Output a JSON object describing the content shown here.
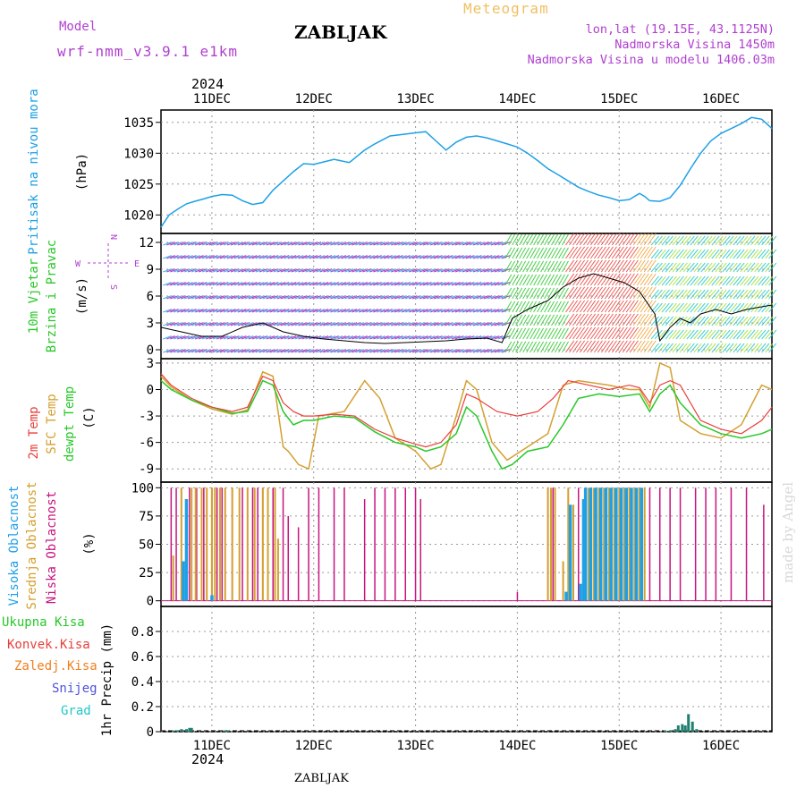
{
  "header": {
    "model_label": "Model",
    "model_name": "wrf-nmm_v3.9.1 e1km",
    "station": "ZABLJAK",
    "product": "Meteogram",
    "coords": "lon,lat (19.15E, 43.1125N)",
    "elevation": "Nadmorska Visina 1450m",
    "model_elevation": "Nadmorska Visina u modelu 1406.03m",
    "year": "2024",
    "footer_station": "ZABLJAK",
    "credit": "made by Angel"
  },
  "colors": {
    "pressure": "#1ea0e6",
    "temp2m": "#e8403a",
    "sfc_temp": "#d4a030",
    "dewpoint": "#28c828",
    "high_cloud": "#1ea0e6",
    "mid_cloud": "#d4a030",
    "low_cloud": "#c8147f",
    "total_precip": "#28c828",
    "conv_precip": "#e8403a",
    "frozen_precip": "#f08020",
    "snow": "#5050e0",
    "hail": "#20c8c8",
    "wind_label": "#28c828",
    "compass": "#b040d0"
  },
  "chart_data": [
    {
      "id": "pressure",
      "type": "line",
      "ylabel": [
        "Pritisak na nivou mora",
        "(hPa)"
      ],
      "ylim": [
        1017,
        1037
      ],
      "yticks": [
        1020,
        1025,
        1030,
        1035
      ],
      "x_ticks": [
        "11DEC",
        "12DEC",
        "13DEC",
        "14DEC",
        "15DEC",
        "16DEC"
      ],
      "x_range_days": [
        10.5,
        16.5
      ],
      "series": [
        {
          "x": [
            10.5,
            10.58,
            10.67,
            10.75,
            10.83,
            10.92,
            11.0,
            11.1,
            11.2,
            11.3,
            11.4,
            11.5,
            11.6,
            11.7,
            11.8,
            11.9,
            12.0,
            12.1,
            12.2,
            12.35,
            12.5,
            12.6,
            12.75,
            12.85,
            13.0,
            13.1,
            13.2,
            13.3,
            13.4,
            13.5,
            13.6,
            13.7,
            13.8,
            13.9,
            14.0,
            14.1,
            14.2,
            14.3,
            14.4,
            14.5,
            14.6,
            14.7,
            14.8,
            14.9,
            15.0,
            15.1,
            15.2,
            15.25,
            15.3,
            15.4,
            15.5,
            15.6,
            15.7,
            15.8,
            15.9,
            16.0,
            16.1,
            16.2,
            16.3,
            16.4,
            16.5
          ],
          "y": [
            1018,
            1020,
            1021,
            1021.8,
            1022.2,
            1022.6,
            1023,
            1023.3,
            1023.2,
            1022.3,
            1021.7,
            1022,
            1024,
            1025.5,
            1027,
            1028.3,
            1028.2,
            1028.6,
            1029,
            1028.5,
            1030.5,
            1031.5,
            1032.8,
            1033,
            1033.3,
            1033.5,
            1032,
            1030.5,
            1031.8,
            1032.6,
            1032.8,
            1032.5,
            1032,
            1031.5,
            1031,
            1030,
            1028.8,
            1027.5,
            1026.5,
            1025.5,
            1024.5,
            1023.8,
            1023.2,
            1022.8,
            1022.3,
            1022.5,
            1023.5,
            1023,
            1022.3,
            1022.2,
            1022.8,
            1024.8,
            1027.5,
            1030,
            1032,
            1033.2,
            1034,
            1034.8,
            1035.8,
            1035.5,
            1034
          ]
        }
      ]
    },
    {
      "id": "wind",
      "type": "line",
      "ylabel": [
        "10m Vjetar",
        "Brzina i Pravac",
        "(m/s)"
      ],
      "compass": {
        "n": "N",
        "s": "S",
        "e": "E",
        "w": "W"
      },
      "ylim": [
        -1,
        13
      ],
      "yticks": [
        0,
        3,
        6,
        9,
        12
      ],
      "series": [
        {
          "name": "speed",
          "x": [
            10.5,
            10.7,
            10.9,
            11.1,
            11.3,
            11.5,
            11.7,
            11.9,
            12.1,
            12.3,
            12.5,
            12.7,
            12.9,
            13.1,
            13.3,
            13.5,
            13.7,
            13.85,
            13.95,
            14.1,
            14.3,
            14.45,
            14.6,
            14.75,
            14.9,
            15.05,
            15.2,
            15.35,
            15.4,
            15.5,
            15.6,
            15.7,
            15.8,
            15.95,
            16.1,
            16.25,
            16.4,
            16.5
          ],
          "y": [
            2.5,
            2.0,
            1.5,
            1.5,
            2.5,
            3.0,
            2.0,
            1.5,
            1.2,
            1.0,
            0.8,
            0.7,
            0.8,
            0.9,
            1.0,
            1.2,
            1.3,
            0.8,
            3.5,
            4.5,
            5.5,
            7.0,
            8.0,
            8.5,
            8.0,
            7.5,
            6.5,
            4.0,
            1.0,
            2.5,
            3.5,
            3.0,
            4.0,
            4.5,
            4.0,
            4.5,
            4.8,
            5.0
          ]
        }
      ]
    },
    {
      "id": "temperature",
      "type": "line",
      "ylabel": [
        "2m Temp",
        "SFC Temp",
        "dewpt Temp",
        "(C)"
      ],
      "ylim": [
        -10.5,
        3.5
      ],
      "yticks": [
        -9,
        -6,
        -3,
        0,
        3
      ],
      "series": [
        {
          "name": "2m Temp",
          "x": [
            10.5,
            10.6,
            10.8,
            11.0,
            11.2,
            11.35,
            11.5,
            11.6,
            11.7,
            11.8,
            11.9,
            12.0,
            12.2,
            12.4,
            12.6,
            12.8,
            13.0,
            13.1,
            13.25,
            13.4,
            13.5,
            13.6,
            13.8,
            14.0,
            14.2,
            14.35,
            14.5,
            14.7,
            14.9,
            15.1,
            15.2,
            15.3,
            15.4,
            15.5,
            15.6,
            15.8,
            16.0,
            16.2,
            16.4,
            16.5
          ],
          "y": [
            1.8,
            0.5,
            -1,
            -2,
            -2.5,
            -2.0,
            1.5,
            1.0,
            -1.5,
            -2.5,
            -3.0,
            -3.0,
            -2.8,
            -3.0,
            -4.5,
            -5.5,
            -6.2,
            -6.5,
            -6.0,
            -4.0,
            -0.5,
            -1.0,
            -2.5,
            -3.0,
            -2.5,
            -1.0,
            1.0,
            0.5,
            0.0,
            0.5,
            0.2,
            -1.5,
            0.5,
            1.0,
            0.5,
            -3.5,
            -4.5,
            -5.0,
            -3.5,
            -2.0
          ]
        },
        {
          "name": "SFC Temp",
          "x": [
            10.5,
            10.6,
            10.8,
            11.0,
            11.2,
            11.35,
            11.5,
            11.6,
            11.7,
            11.75,
            11.85,
            11.95,
            12.05,
            12.3,
            12.5,
            12.65,
            12.8,
            13.0,
            13.15,
            13.25,
            13.4,
            13.5,
            13.6,
            13.75,
            13.9,
            14.1,
            14.3,
            14.45,
            14.6,
            14.9,
            15.1,
            15.2,
            15.3,
            15.4,
            15.5,
            15.6,
            15.8,
            16.0,
            16.2,
            16.4,
            16.5
          ],
          "y": [
            1.5,
            0.3,
            -1.2,
            -2.2,
            -2.8,
            -2.3,
            2.0,
            1.5,
            -6.5,
            -7.0,
            -8.5,
            -9.0,
            -3.0,
            -2.5,
            1.0,
            -1.0,
            -5.5,
            -7.0,
            -9.0,
            -8.5,
            -3.0,
            1.0,
            0.0,
            -6.0,
            -8.0,
            -6.5,
            -5.0,
            0.5,
            1.0,
            0.5,
            0.0,
            0.0,
            -2.0,
            3.0,
            2.5,
            -3.5,
            -5.0,
            -5.5,
            -4.0,
            0.5,
            0.0
          ]
        },
        {
          "name": "dewpt Temp",
          "x": [
            10.5,
            10.6,
            10.8,
            11.0,
            11.2,
            11.35,
            11.5,
            11.6,
            11.7,
            11.8,
            11.9,
            12.0,
            12.2,
            12.4,
            12.6,
            12.8,
            13.0,
            13.1,
            13.25,
            13.4,
            13.5,
            13.6,
            13.75,
            13.85,
            13.95,
            14.1,
            14.3,
            14.45,
            14.6,
            14.8,
            15.0,
            15.2,
            15.3,
            15.4,
            15.5,
            15.6,
            15.8,
            16.0,
            16.2,
            16.4,
            16.5
          ],
          "y": [
            1.0,
            0.0,
            -1.2,
            -2.0,
            -2.7,
            -2.5,
            1.0,
            0.5,
            -2.5,
            -4.0,
            -3.5,
            -3.5,
            -3.0,
            -3.2,
            -4.8,
            -6.0,
            -6.5,
            -7.0,
            -6.5,
            -5.0,
            -2.0,
            -3.0,
            -7.0,
            -9.0,
            -8.5,
            -7.0,
            -6.5,
            -4.0,
            -1.0,
            -0.5,
            -0.8,
            -0.5,
            -2.5,
            -0.5,
            0.5,
            -1.5,
            -4.0,
            -5.0,
            -5.5,
            -5.0,
            -4.5
          ]
        }
      ]
    },
    {
      "id": "clouds",
      "type": "bar",
      "ylabel": [
        "Visoka Oblacnost",
        "Srednja Oblacnost",
        "Niska Oblacnost",
        "(%)"
      ],
      "ylim": [
        -5,
        105
      ],
      "yticks": [
        0,
        25,
        50,
        75,
        100
      ],
      "series": [
        {
          "name": "Niska Oblacnost",
          "x": [
            10.6,
            10.65,
            10.7,
            10.78,
            10.85,
            10.92,
            11.0,
            11.05,
            11.1,
            11.2,
            11.3,
            11.4,
            11.45,
            11.5,
            11.6,
            11.7,
            11.75,
            11.85,
            11.95,
            12.05,
            12.2,
            12.3,
            12.5,
            12.6,
            12.7,
            12.8,
            12.9,
            13.0,
            13.05,
            14.0,
            14.3,
            14.35,
            14.6,
            14.8,
            14.9,
            15.1,
            15.2,
            15.3,
            15.4,
            15.5,
            15.6,
            15.75,
            15.85,
            15.95,
            16.1,
            16.25,
            16.42
          ],
          "y": [
            100,
            100,
            100,
            100,
            100,
            100,
            100,
            100,
            100,
            100,
            100,
            100,
            100,
            100,
            100,
            100,
            75,
            65,
            100,
            100,
            100,
            100,
            90,
            100,
            100,
            100,
            100,
            100,
            90,
            8,
            100,
            100,
            100,
            100,
            100,
            100,
            100,
            100,
            100,
            100,
            100,
            100,
            100,
            100,
            100,
            100,
            85
          ]
        },
        {
          "name": "Srednja Oblacnost",
          "x": [
            10.62,
            10.7,
            10.8,
            10.84,
            10.9,
            10.95,
            11.0,
            11.03,
            11.08,
            11.13,
            11.2,
            11.27,
            11.35,
            11.42,
            11.5,
            11.55,
            11.62,
            11.65,
            14.3,
            14.33,
            14.37,
            14.45,
            14.5,
            14.55,
            14.7,
            14.75,
            14.8,
            14.85,
            14.9,
            14.95,
            15.0,
            15.05,
            15.1,
            15.15,
            15.2,
            15.25
          ],
          "y": [
            40,
            100,
            100,
            100,
            100,
            100,
            100,
            100,
            100,
            100,
            100,
            100,
            100,
            100,
            100,
            100,
            100,
            55,
            100,
            100,
            100,
            35,
            100,
            85,
            100,
            100,
            100,
            100,
            100,
            100,
            100,
            100,
            100,
            100,
            100,
            100
          ]
        },
        {
          "name": "Visoka Oblacnost",
          "x": [
            10.72,
            10.75,
            11.0,
            14.48,
            14.52,
            14.62,
            14.65,
            14.67,
            14.72,
            14.77,
            14.82,
            14.87,
            14.92,
            14.97,
            15.02,
            15.07,
            15.12,
            15.17,
            15.22
          ],
          "y": [
            35,
            90,
            5,
            8,
            85,
            15,
            90,
            100,
            100,
            100,
            100,
            100,
            100,
            100,
            100,
            100,
            100,
            100,
            100
          ]
        }
      ]
    },
    {
      "id": "precip",
      "type": "bar",
      "ylabel": [
        "Ukupna Kisa",
        "Konvek.Kisa",
        "Zaledj.Kisa",
        "Snijeg",
        "Grad",
        "1hr Precip (mm)"
      ],
      "ylim": [
        0,
        1.0
      ],
      "yticks": [
        0,
        0.2,
        0.4,
        0.6,
        0.8
      ],
      "series": [
        {
          "name": "Ukupna Kisa",
          "x": [
            10.62,
            10.66,
            10.7,
            10.75,
            10.78,
            10.8,
            11.12,
            11.16,
            15.45,
            15.5,
            15.55,
            15.58,
            15.62,
            15.65,
            15.68,
            15.72,
            15.76
          ],
          "y": [
            0.01,
            0.01,
            0.02,
            0.02,
            0.03,
            0.03,
            0.01,
            0.01,
            0.01,
            0.01,
            0.02,
            0.05,
            0.06,
            0.05,
            0.14,
            0.08,
            0.02
          ]
        }
      ]
    }
  ]
}
